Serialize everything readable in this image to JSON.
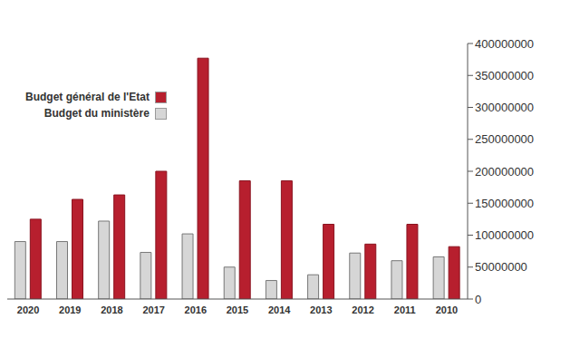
{
  "chart_data": {
    "type": "bar",
    "categories": [
      "2020",
      "2019",
      "2018",
      "2017",
      "2016",
      "2015",
      "2014",
      "2013",
      "2012",
      "2011",
      "2010"
    ],
    "series": [
      {
        "name": "Budget général de l'Etat",
        "color": "#b71f2e",
        "values": [
          125000000,
          156000000,
          163000000,
          200000000,
          377000000,
          185000000,
          185000000,
          117000000,
          86000000,
          117000000,
          82000000
        ]
      },
      {
        "name": "Budget du ministère",
        "color": "#d6d6d6",
        "values": [
          90000000,
          90000000,
          122000000,
          73000000,
          102000000,
          50000000,
          29000000,
          38000000,
          72000000,
          60000000,
          66000000
        ]
      }
    ],
    "ylim": [
      0,
      400000000
    ],
    "yticks": [
      0,
      50000000,
      100000000,
      150000000,
      200000000,
      250000000,
      300000000,
      350000000,
      400000000
    ],
    "grid": false,
    "legend": "upper left"
  }
}
